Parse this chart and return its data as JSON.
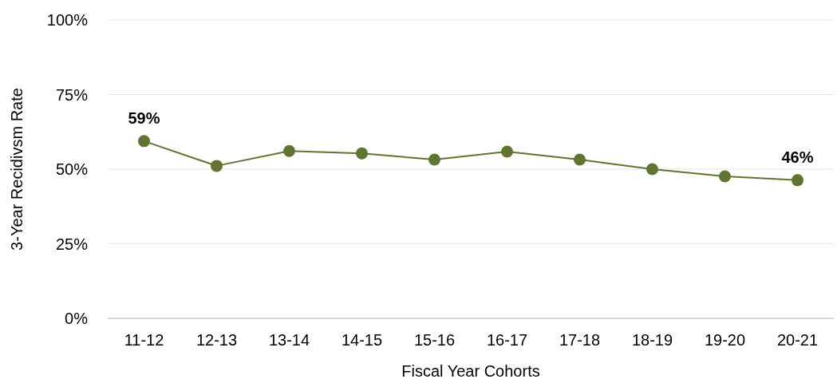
{
  "chart_data": {
    "type": "line",
    "xlabel": "Fiscal Year Cohorts",
    "ylabel": "3-Year Recidivsm Rate",
    "categories": [
      "11-12",
      "12-13",
      "13-14",
      "14-15",
      "15-16",
      "16-17",
      "17-18",
      "18-19",
      "19-20",
      "20-21"
    ],
    "series": [
      {
        "color": "#5f7530",
        "values": [
          59.4,
          51.1,
          56.1,
          55.3,
          53.2,
          55.9,
          53.2,
          50,
          47.6,
          46.3
        ],
        "value_labels": [
          "59%",
          null,
          null,
          null,
          null,
          null,
          null,
          null,
          null,
          "46%"
        ]
      }
    ],
    "ylim": [
      0,
      100
    ],
    "yticks": [
      {
        "value": 0,
        "label": "0%"
      },
      {
        "value": 25,
        "label": "25%"
      },
      {
        "value": 50,
        "label": "50%"
      },
      {
        "value": 75,
        "label": "75%"
      },
      {
        "value": 100,
        "label": "100%"
      }
    ],
    "grid": "y",
    "marker": "circle",
    "line_style": "solid"
  }
}
